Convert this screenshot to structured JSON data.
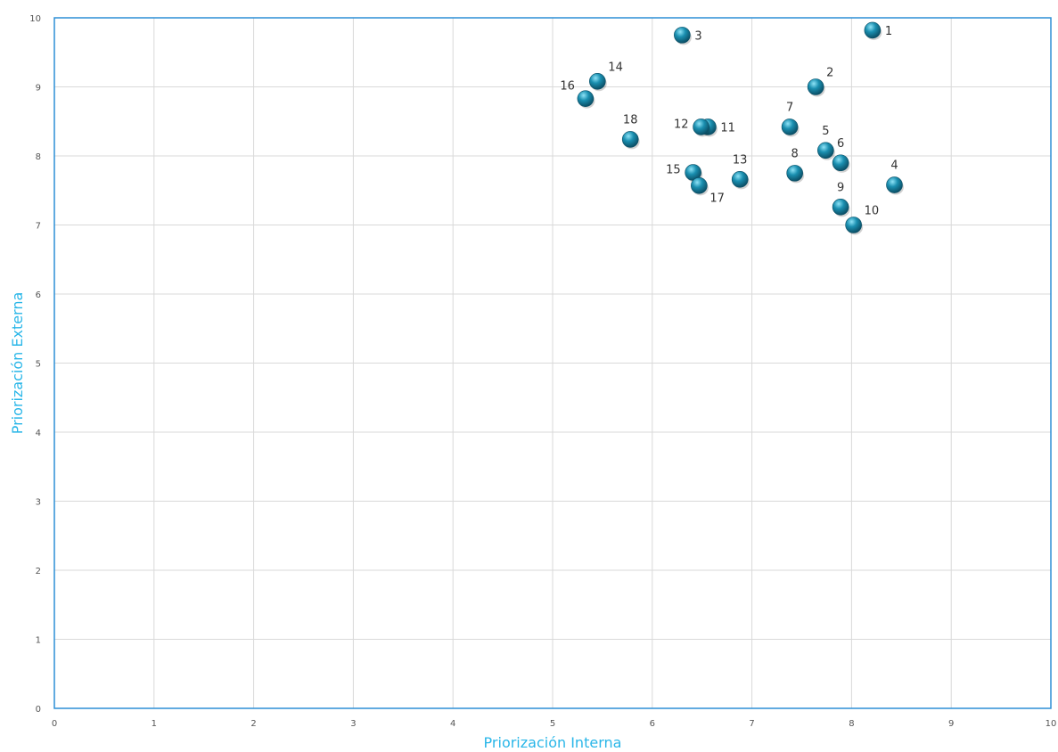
{
  "chart_data": {
    "type": "scatter",
    "title": "",
    "xlabel": "Priorización Interna",
    "ylabel": "Priorización Externa",
    "xlim": [
      0,
      10
    ],
    "ylim": [
      0,
      10
    ],
    "xticks": [
      "0",
      "1",
      "2",
      "3",
      "4",
      "5",
      "6",
      "7",
      "8",
      "9",
      "10"
    ],
    "yticks": [
      "0",
      "1",
      "2",
      "3",
      "4",
      "5",
      "6",
      "7",
      "8",
      "9",
      "10"
    ],
    "grid": true,
    "legend": "none",
    "colors": {
      "marker": "#1a8fb0",
      "marker_highlight": "#8fe3f7",
      "marker_dark": "#0b4f66",
      "axis_title": "#29b6e8",
      "plot_border": "#2d8fd6",
      "grid": "#d9d9d9"
    },
    "points": [
      {
        "label": "1",
        "x": 8.21,
        "y": 9.82,
        "label_pos": "right"
      },
      {
        "label": "2",
        "x": 7.64,
        "y": 9.0,
        "label_pos": "upper-right"
      },
      {
        "label": "3",
        "x": 6.3,
        "y": 9.75,
        "label_pos": "right"
      },
      {
        "label": "4",
        "x": 8.43,
        "y": 7.58,
        "label_pos": "above"
      },
      {
        "label": "5",
        "x": 7.74,
        "y": 8.08,
        "label_pos": "above"
      },
      {
        "label": "6",
        "x": 7.89,
        "y": 7.9,
        "label_pos": "above"
      },
      {
        "label": "7",
        "x": 7.38,
        "y": 8.42,
        "label_pos": "above"
      },
      {
        "label": "8",
        "x": 7.43,
        "y": 7.75,
        "label_pos": "above"
      },
      {
        "label": "9",
        "x": 7.89,
        "y": 7.26,
        "label_pos": "above"
      },
      {
        "label": "10",
        "x": 8.02,
        "y": 7.0,
        "label_pos": "upper-right"
      },
      {
        "label": "11",
        "x": 6.56,
        "y": 8.42,
        "label_pos": "right"
      },
      {
        "label": "12",
        "x": 6.49,
        "y": 8.42,
        "label_pos": "left"
      },
      {
        "label": "13",
        "x": 6.88,
        "y": 7.66,
        "label_pos": "above"
      },
      {
        "label": "14",
        "x": 5.45,
        "y": 9.08,
        "label_pos": "upper-right"
      },
      {
        "label": "15",
        "x": 6.41,
        "y": 7.76,
        "label_pos": "left"
      },
      {
        "label": "16",
        "x": 5.33,
        "y": 8.83,
        "label_pos": "upper-left"
      },
      {
        "label": "17",
        "x": 6.47,
        "y": 7.57,
        "label_pos": "lower-right"
      },
      {
        "label": "18",
        "x": 5.78,
        "y": 8.24,
        "label_pos": "above"
      }
    ]
  }
}
